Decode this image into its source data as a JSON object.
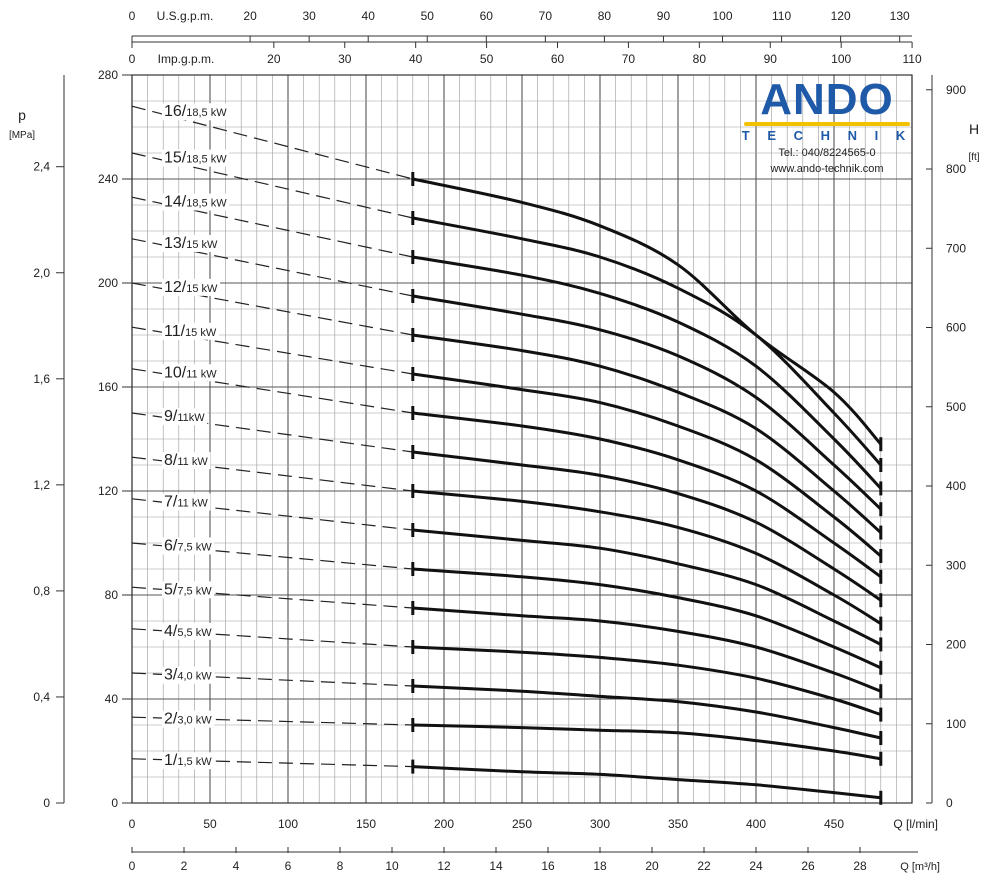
{
  "brand": {
    "name": "ANDO",
    "subtitle": "T E C H N I K",
    "phone": "Tel.: 040/8224565-0",
    "website": "www.ando-technik.com"
  },
  "chart_data": {
    "type": "line",
    "x_primary": {
      "label": "Q [l/min]",
      "range": [
        0,
        500
      ],
      "ticks": [
        0,
        50,
        100,
        150,
        200,
        250,
        300,
        350,
        400,
        450
      ]
    },
    "x_bottom2": {
      "label": "Q [m³/h]",
      "range": [
        0,
        30
      ],
      "ticks": [
        0,
        2,
        4,
        6,
        8,
        10,
        12,
        14,
        16,
        18,
        20,
        22,
        24,
        26,
        28
      ]
    },
    "x_top1": {
      "label": "U.S.g.p.m.",
      "range": [
        0,
        132
      ],
      "ticks": [
        0,
        20,
        30,
        40,
        50,
        60,
        70,
        80,
        90,
        100,
        110,
        120,
        130
      ],
      "extra_labels": [
        "U.S.g.p.m."
      ]
    },
    "x_top2": {
      "label": "Imp.g.p.m.",
      "range": [
        0,
        110
      ],
      "ticks": [
        0,
        20,
        30,
        40,
        50,
        60,
        70,
        80,
        90,
        100,
        110
      ]
    },
    "y_left_head": {
      "label": "",
      "range": [
        0,
        280
      ],
      "ticks": [
        0,
        40,
        80,
        120,
        160,
        200,
        240,
        280
      ]
    },
    "y_left_pressure": {
      "label": "p",
      "unit": "[MPa]",
      "ticks": [
        "0",
        "0,4",
        "0,8",
        "1,2",
        "1,6",
        "2,0",
        "2,4"
      ]
    },
    "y_right": {
      "label": "H",
      "unit": "[ft]",
      "ticks": [
        0,
        100,
        200,
        300,
        400,
        500,
        600,
        700,
        800,
        900
      ]
    },
    "operating_range_q": [
      180,
      480
    ],
    "grid": true,
    "series": [
      {
        "name": "1/1,5 kW",
        "stages": "1",
        "power": "1,5 kW",
        "q": [
          0,
          180,
          250,
          300,
          350,
          400,
          450,
          480
        ],
        "h": [
          17,
          14,
          12,
          11,
          9,
          7,
          4,
          2
        ]
      },
      {
        "name": "2/3,0 kW",
        "stages": "2",
        "power": "3,0 kW",
        "q": [
          0,
          180,
          250,
          300,
          350,
          400,
          450,
          480
        ],
        "h": [
          33,
          30,
          29,
          28,
          27,
          24,
          20,
          17
        ]
      },
      {
        "name": "3/4,0 kW",
        "stages": "3",
        "power": "4,0 kW",
        "q": [
          0,
          180,
          250,
          300,
          350,
          400,
          450,
          480
        ],
        "h": [
          50,
          45,
          43,
          41,
          39,
          35,
          29,
          25
        ]
      },
      {
        "name": "4/5,5 kW",
        "stages": "4",
        "power": "5,5 kW",
        "q": [
          0,
          180,
          250,
          300,
          350,
          400,
          450,
          480
        ],
        "h": [
          67,
          60,
          58,
          56,
          53,
          48,
          40,
          34
        ]
      },
      {
        "name": "5/7,5 kW",
        "stages": "5",
        "power": "7,5 kW",
        "q": [
          0,
          180,
          250,
          300,
          350,
          400,
          450,
          480
        ],
        "h": [
          83,
          75,
          72,
          70,
          66,
          60,
          50,
          43
        ]
      },
      {
        "name": "6/7,5 kW",
        "stages": "6",
        "power": "7,5 kW",
        "q": [
          0,
          180,
          250,
          300,
          350,
          400,
          450,
          480
        ],
        "h": [
          100,
          90,
          87,
          84,
          79,
          72,
          60,
          52
        ]
      },
      {
        "name": "7/11 kW",
        "stages": "7",
        "power": "11 kW",
        "q": [
          0,
          180,
          250,
          300,
          350,
          400,
          450,
          480
        ],
        "h": [
          117,
          105,
          101,
          98,
          92,
          84,
          70,
          61
        ]
      },
      {
        "name": "8/11 kW",
        "stages": "8",
        "power": "11 kW",
        "q": [
          0,
          180,
          250,
          300,
          350,
          400,
          450,
          480
        ],
        "h": [
          133,
          120,
          116,
          112,
          106,
          96,
          80,
          69
        ]
      },
      {
        "name": "9/11kW",
        "stages": "9",
        "power": "11kW",
        "q": [
          0,
          180,
          250,
          300,
          350,
          400,
          450,
          480
        ],
        "h": [
          150,
          135,
          130,
          126,
          119,
          108,
          90,
          78
        ]
      },
      {
        "name": "10/11 kW",
        "stages": "10",
        "power": "11 kW",
        "q": [
          0,
          180,
          250,
          300,
          350,
          400,
          450,
          480
        ],
        "h": [
          167,
          150,
          145,
          140,
          132,
          120,
          100,
          87
        ]
      },
      {
        "name": "11/15 kW",
        "stages": "11",
        "power": "15 kW",
        "q": [
          0,
          180,
          250,
          300,
          350,
          400,
          450,
          480
        ],
        "h": [
          183,
          165,
          159,
          154,
          145,
          132,
          110,
          95
        ]
      },
      {
        "name": "12/15 kW",
        "stages": "12",
        "power": "15 kW",
        "q": [
          0,
          180,
          250,
          300,
          350,
          400,
          450,
          480
        ],
        "h": [
          200,
          180,
          174,
          168,
          158,
          144,
          120,
          104
        ]
      },
      {
        "name": "13/15 kW",
        "stages": "13",
        "power": "15 kW",
        "q": [
          0,
          180,
          250,
          300,
          350,
          400,
          450,
          480
        ],
        "h": [
          217,
          195,
          188,
          182,
          172,
          156,
          130,
          113
        ]
      },
      {
        "name": "14/18,5 kW",
        "stages": "14",
        "power": "18,5 kW",
        "q": [
          0,
          180,
          250,
          300,
          350,
          400,
          450,
          480
        ],
        "h": [
          233,
          210,
          203,
          196,
          185,
          168,
          140,
          121
        ]
      },
      {
        "name": "15/18,5 kW",
        "stages": "15",
        "power": "18,5 kW",
        "q": [
          0,
          180,
          250,
          300,
          350,
          400,
          450,
          480
        ],
        "h": [
          250,
          225,
          217,
          210,
          198,
          180,
          150,
          130
        ]
      },
      {
        "name": "16/18,5 kW",
        "stages": "16",
        "power": "18,5 kW",
        "q": [
          0,
          180,
          250,
          300,
          350,
          400,
          450,
          480
        ],
        "h": [
          268,
          240,
          231,
          222,
          207,
          180,
          158,
          138
        ]
      }
    ]
  }
}
